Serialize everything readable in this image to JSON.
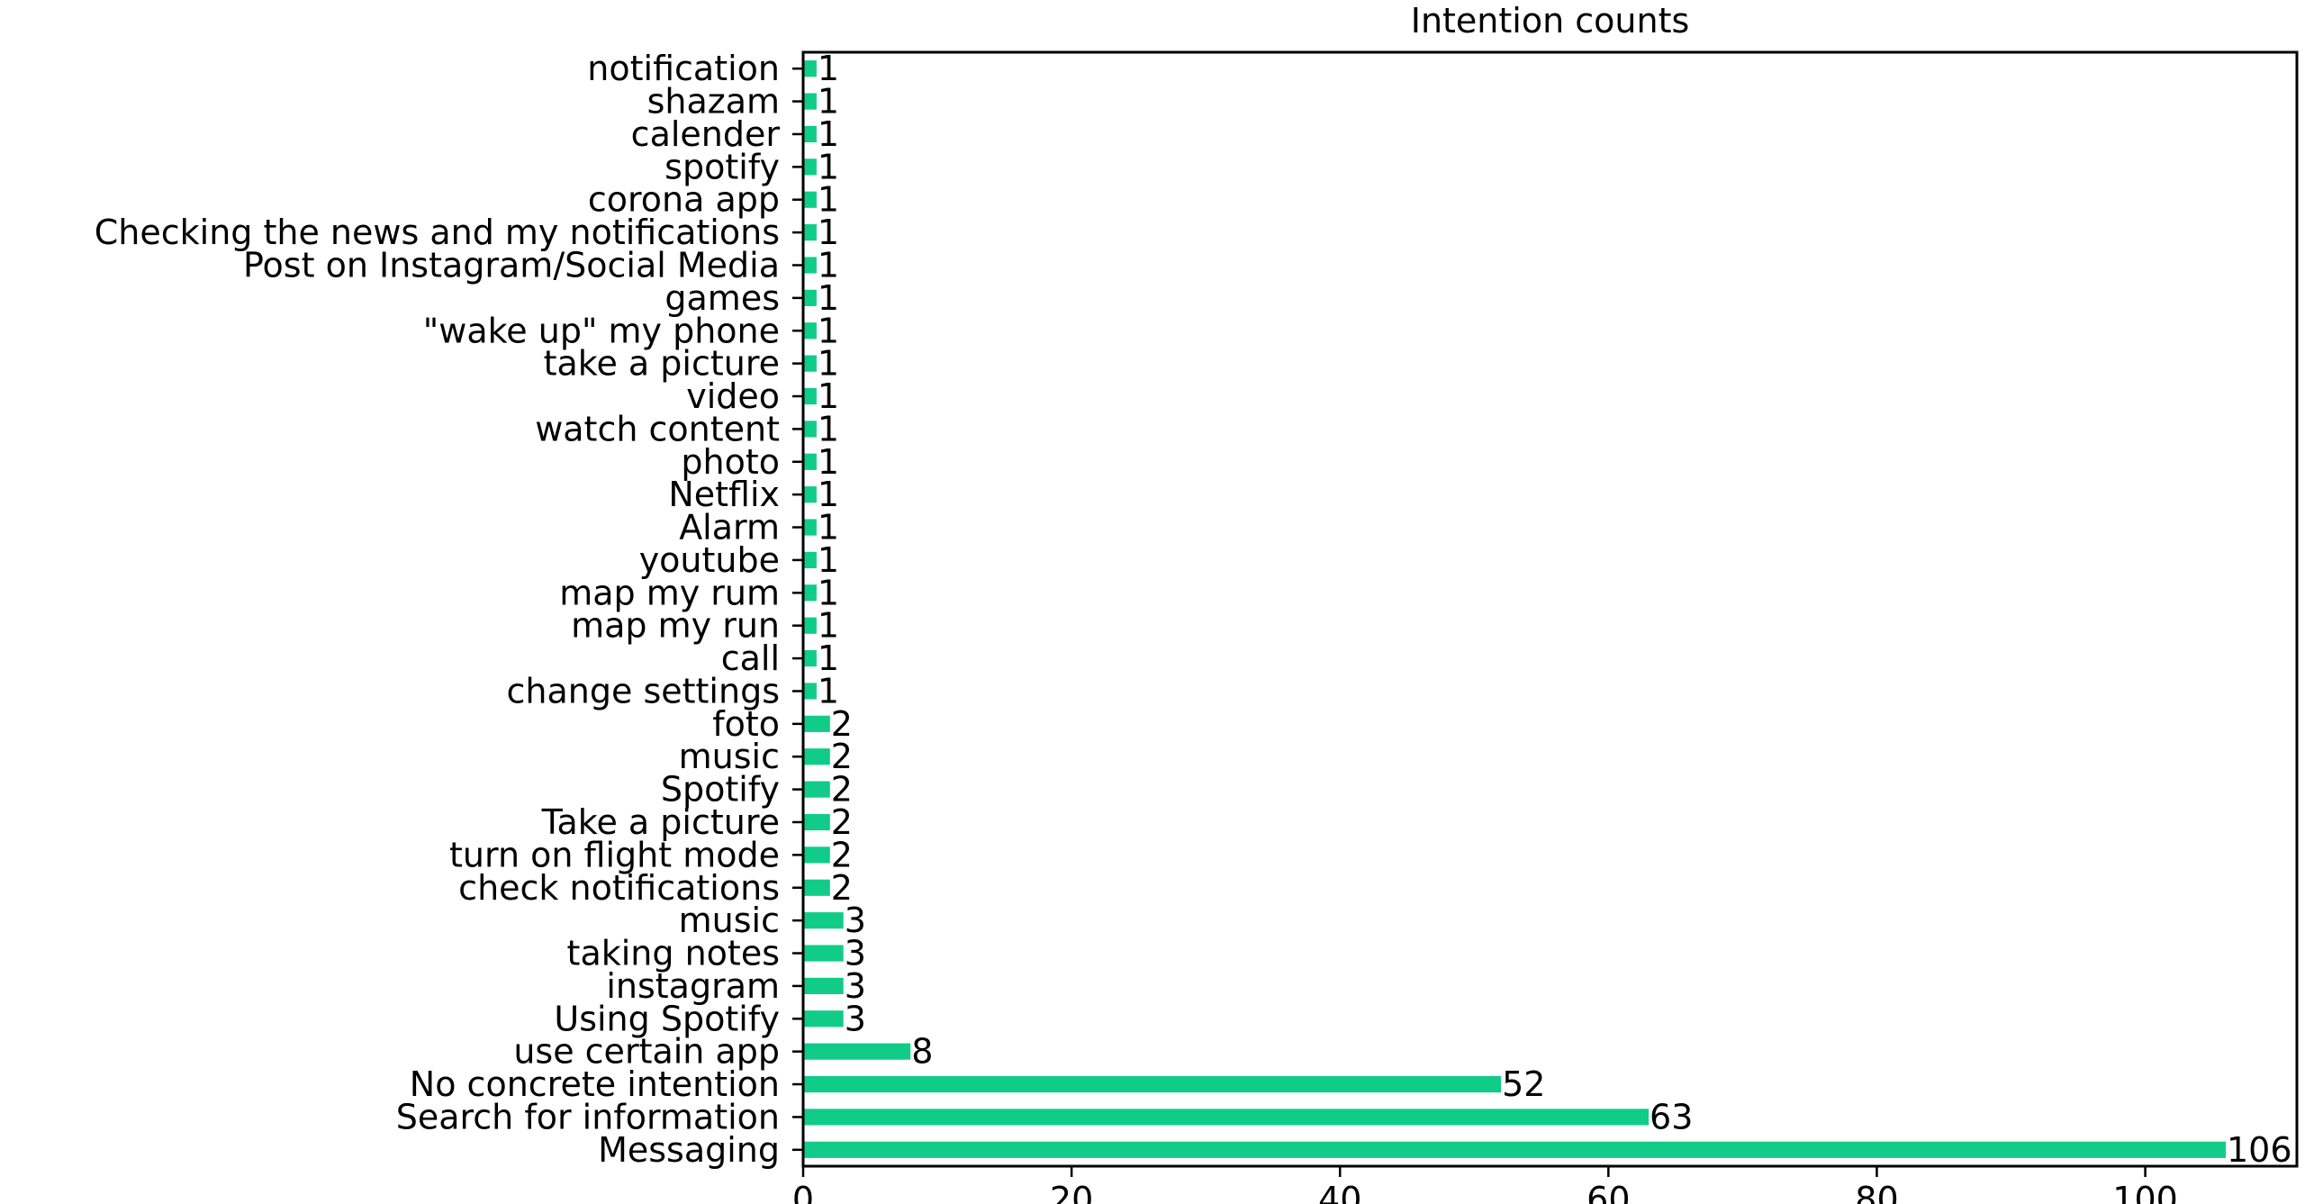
{
  "colors": {
    "bar": "#11CC88",
    "axis": "#000000",
    "background": "#ffffff"
  },
  "chart_data": {
    "type": "bar",
    "orientation": "horizontal",
    "title": "Intention counts",
    "xlabel": "",
    "ylabel": "",
    "xlim": [
      0,
      111.3
    ],
    "xticks": [
      0,
      20,
      40,
      60,
      80,
      100
    ],
    "grid": false,
    "legend": "none",
    "categories": [
      "Messaging",
      "Search for information",
      "No concrete intention",
      "use certain app",
      "Using Spotify",
      "instagram",
      "taking notes",
      "music",
      "check notifications",
      "turn on flight mode",
      "Take a picture ",
      "Spotify",
      "music ",
      "foto",
      "change settings",
      "call",
      "map my run",
      "map my rum",
      "youtube",
      "Alarm",
      "Netflix ",
      "photo",
      "watch content",
      "video",
      "take a picture",
      "\"wake up\" my phone",
      "games",
      "Post on Instagram/Social Media ",
      "Checking the news and my notifications ",
      "corona app",
      "spotify",
      "calender",
      "shazam",
      "notification "
    ],
    "values": [
      106,
      63,
      52,
      8,
      3,
      3,
      3,
      3,
      2,
      2,
      2,
      2,
      2,
      2,
      1,
      1,
      1,
      1,
      1,
      1,
      1,
      1,
      1,
      1,
      1,
      1,
      1,
      1,
      1,
      1,
      1,
      1,
      1,
      1
    ]
  }
}
